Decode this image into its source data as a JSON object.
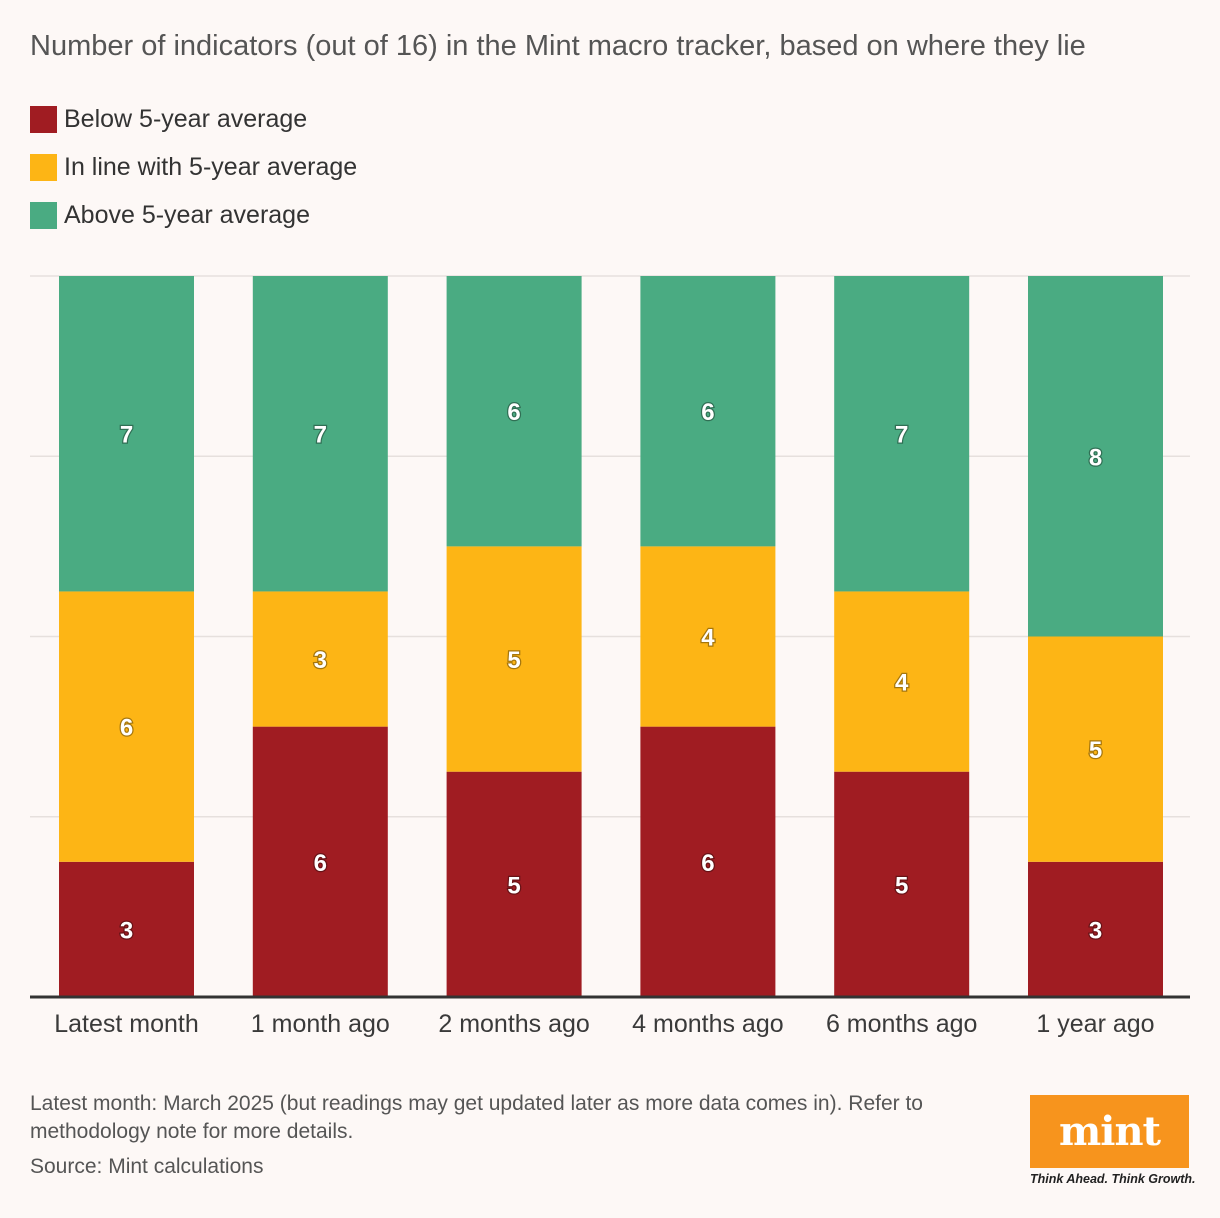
{
  "colors": {
    "below": "#a01c22",
    "inline": "#fdb515",
    "above": "#4aab82",
    "grid": "#e6e0dd",
    "axis": "#333333",
    "logo": "#f7941d"
  },
  "chart_data": {
    "type": "bar",
    "stacked": true,
    "title": "Number of indicators (out of 16) in the Mint macro tracker, based on where they lie",
    "categories": [
      "Latest month",
      "1 month ago",
      "2 months ago",
      "4 months ago",
      "6 months ago",
      "1 year ago"
    ],
    "series": [
      {
        "name": "Below 5-year average",
        "key": "below",
        "values": [
          3,
          6,
          5,
          6,
          5,
          3
        ]
      },
      {
        "name": "In line with 5-year average",
        "key": "inline",
        "values": [
          6,
          3,
          5,
          4,
          4,
          5
        ]
      },
      {
        "name": "Above 5-year average",
        "key": "above",
        "values": [
          7,
          7,
          6,
          6,
          7,
          8
        ]
      }
    ],
    "ylim": [
      0,
      16
    ],
    "yticks": [
      0,
      4,
      8,
      12,
      16
    ],
    "grid": true,
    "legend_position": "top-left"
  },
  "footnote": "Latest month: March 2025 (but readings may get updated later as more data comes in). Refer to methodology note for more details.",
  "source": "Source: Mint calculations",
  "logo": {
    "word": "mint",
    "tagline": "Think Ahead. Think Growth."
  }
}
